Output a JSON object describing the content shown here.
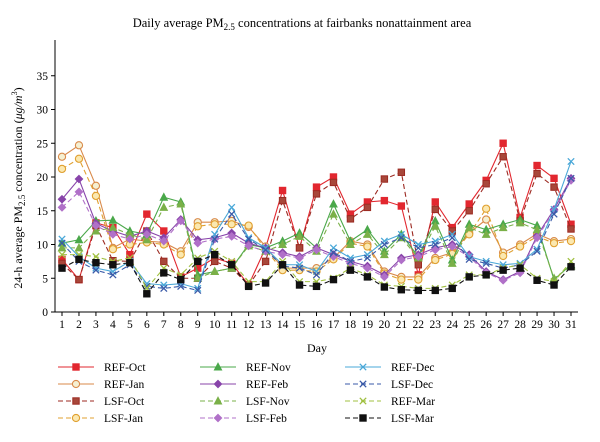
{
  "chart_data": {
    "type": "line",
    "title_main": "Daily average PM",
    "title_sub": "2.5",
    "title_rest": " concentrations at fairbanks nonattainment area",
    "xlabel": "Day",
    "ylabel_main": "24-h average PM",
    "ylabel_sub": "2.5",
    "ylabel_rest": " concentration (",
    "ylabel_unit": "μg/m",
    "ylabel_sup": "3",
    "ylabel_end": ")",
    "ylim": [
      0,
      40
    ],
    "yticks": [
      0,
      5,
      10,
      15,
      20,
      25,
      30,
      35
    ],
    "x": [
      1,
      2,
      3,
      4,
      5,
      6,
      7,
      8,
      9,
      10,
      11,
      12,
      13,
      14,
      15,
      16,
      17,
      18,
      19,
      20,
      21,
      22,
      23,
      24,
      25,
      26,
      27,
      28,
      29,
      30,
      31
    ],
    "grid": false,
    "legend_position": "bottom",
    "series": [
      {
        "name": "REF-Oct",
        "color": "#e2272f",
        "marker": "square",
        "dash": "solid",
        "fill": "#e2272f",
        "values": [
          7.8,
          4.8,
          13.2,
          12.5,
          8.5,
          14.5,
          12,
          5.2,
          6.5,
          8,
          7.2,
          4,
          9.5,
          18,
          9.5,
          18.5,
          20,
          14.5,
          16.3,
          16.5,
          15.7,
          5.5,
          16.3,
          12.5,
          16,
          19.5,
          25,
          14,
          21.7,
          19.8,
          13
        ]
      },
      {
        "name": "REF-Jan",
        "color": "#d98a4a",
        "marker": "circle",
        "dash": "solid",
        "fill": "#f5f0d2",
        "values": [
          23,
          24.7,
          18.7,
          9.5,
          10.8,
          10.5,
          10.3,
          9,
          13.3,
          13.3,
          13.5,
          12.6,
          9.7,
          6.5,
          6.5,
          6.5,
          8,
          10.5,
          10,
          6,
          5.2,
          5.2,
          8,
          8.8,
          11.7,
          13.7,
          8.8,
          10,
          11.6,
          10.5,
          10.8
        ]
      },
      {
        "name": "LSF-Oct",
        "color": "#9c2a22",
        "marker": "square",
        "dash": "dashed",
        "fill": "#a8473a",
        "values": [
          7.2,
          4.8,
          12.8,
          7.6,
          7.5,
          12,
          7.5,
          5,
          5,
          7.5,
          6.5,
          4,
          7.5,
          16.5,
          9.5,
          17.5,
          19.2,
          13.8,
          15.5,
          19.7,
          20.7,
          7,
          15.2,
          12,
          15,
          19,
          23,
          13.5,
          20.5,
          18.5,
          12.3
        ]
      },
      {
        "name": "LSF-Jan",
        "color": "#e0a030",
        "marker": "circle",
        "dash": "dashed",
        "fill": "#fbe8b0",
        "values": [
          21.2,
          22.7,
          17.2,
          9.3,
          10,
          10.3,
          10,
          8.5,
          12.7,
          13,
          13,
          12.8,
          9.2,
          6.2,
          6.2,
          6,
          7.8,
          10.2,
          9.7,
          5.7,
          4.8,
          4.8,
          7.7,
          8.6,
          11.5,
          15.3,
          8.3,
          9.7,
          11.2,
          10.2,
          10.5
        ]
      },
      {
        "name": "REF-Nov",
        "color": "#4aa84a",
        "marker": "triangle",
        "dash": "solid",
        "fill": "#4aa84a",
        "values": [
          10.2,
          10.7,
          13.5,
          13.6,
          12,
          11.5,
          17,
          16.3,
          5.5,
          6,
          6.5,
          10,
          9.5,
          10.5,
          11.7,
          9.5,
          16,
          10.5,
          12.2,
          9,
          11.5,
          8.2,
          13.5,
          7.7,
          13,
          12.2,
          13,
          13.7,
          12.8,
          4.8,
          7
        ]
      },
      {
        "name": "REF-Feb",
        "color": "#8844aa",
        "marker": "diamond",
        "dash": "solid",
        "fill": "#8844aa",
        "values": [
          16.7,
          19.7,
          13.1,
          12,
          11.2,
          12,
          11,
          13.7,
          10.7,
          11,
          11.7,
          10.2,
          9.5,
          8.8,
          8.2,
          9.5,
          8.5,
          7.5,
          6.8,
          5.5,
          8,
          8.5,
          9.5,
          10,
          8.5,
          6,
          4.8,
          6,
          11.3,
          15.2,
          19.8
        ]
      },
      {
        "name": "LSF-Nov",
        "color": "#7ab048",
        "marker": "triangle",
        "dash": "dashed",
        "fill": "#7ab048",
        "values": [
          9.5,
          9.5,
          12,
          12.5,
          11.5,
          10.7,
          15.5,
          16,
          5,
          6,
          6.5,
          9.8,
          9,
          10,
          11.2,
          9,
          14.5,
          10,
          11.5,
          8.5,
          11,
          8,
          12.7,
          7.2,
          12.5,
          11.5,
          12.5,
          13.2,
          12.2,
          5,
          6.8
        ]
      },
      {
        "name": "LSF-Feb",
        "color": "#b070c8",
        "marker": "diamond",
        "dash": "dashed",
        "fill": "#b070c8",
        "values": [
          15.5,
          17.8,
          12.8,
          11.5,
          10.8,
          11.5,
          10.5,
          13.5,
          10.2,
          10.8,
          11.2,
          9.8,
          9,
          8.5,
          8,
          9.2,
          8.2,
          7.2,
          6.5,
          5.2,
          7.7,
          8.2,
          9.2,
          9.7,
          8.2,
          5.8,
          4.7,
          5.8,
          11,
          15,
          19.5
        ]
      },
      {
        "name": "REF-Dec",
        "color": "#4aa8d8",
        "marker": "x",
        "dash": "solid",
        "fill": "none",
        "values": [
          10.8,
          8.2,
          6.5,
          6,
          7.5,
          4.2,
          4,
          4.2,
          3.5,
          11.5,
          15.5,
          11,
          9.5,
          7,
          7,
          6,
          9.5,
          8,
          8.5,
          10.5,
          11.5,
          10,
          10.5,
          11.5,
          8.2,
          7.5,
          7,
          7.2,
          9.3,
          15.2,
          22.3
        ]
      },
      {
        "name": "LSF-Dec",
        "color": "#3a5aa8",
        "marker": "x",
        "dash": "dashed",
        "fill": "none",
        "values": [
          10.2,
          7.5,
          6.2,
          5.5,
          7,
          3.8,
          3.5,
          3.8,
          3.2,
          10.8,
          14.5,
          10.8,
          9.2,
          6.8,
          6.5,
          5.5,
          8.8,
          7.5,
          8,
          10,
          11,
          9.5,
          10,
          11,
          7.8,
          7.2,
          6.5,
          7,
          9,
          14.5,
          19.8
        ]
      },
      {
        "name": "REF-Mar",
        "color": "#a0c040",
        "marker": "x",
        "dash": "dashed",
        "fill": "none",
        "values": [
          8.5,
          8.5,
          8.2,
          7.5,
          8,
          3.5,
          6.5,
          5.5,
          8,
          9,
          7.5,
          4.5,
          4.5,
          7.5,
          4.5,
          4.5,
          5,
          6.5,
          5.5,
          4,
          3.8,
          3.5,
          3.5,
          4,
          5.5,
          5.5,
          6.5,
          7,
          5,
          4.5,
          7.5
        ]
      },
      {
        "name": "LSF-Mar",
        "color": "#111111",
        "marker": "square",
        "dash": "dashed",
        "fill": "#111111",
        "values": [
          6.5,
          7.8,
          7.3,
          7,
          7.3,
          2.7,
          5.8,
          4.8,
          7.5,
          8.5,
          7,
          3.8,
          4.3,
          7,
          4,
          3.8,
          4.8,
          6.2,
          5.2,
          3.7,
          3.3,
          3.2,
          3.2,
          3.5,
          5.2,
          5.5,
          6.2,
          6.5,
          4.7,
          4,
          6.7
        ]
      }
    ]
  }
}
